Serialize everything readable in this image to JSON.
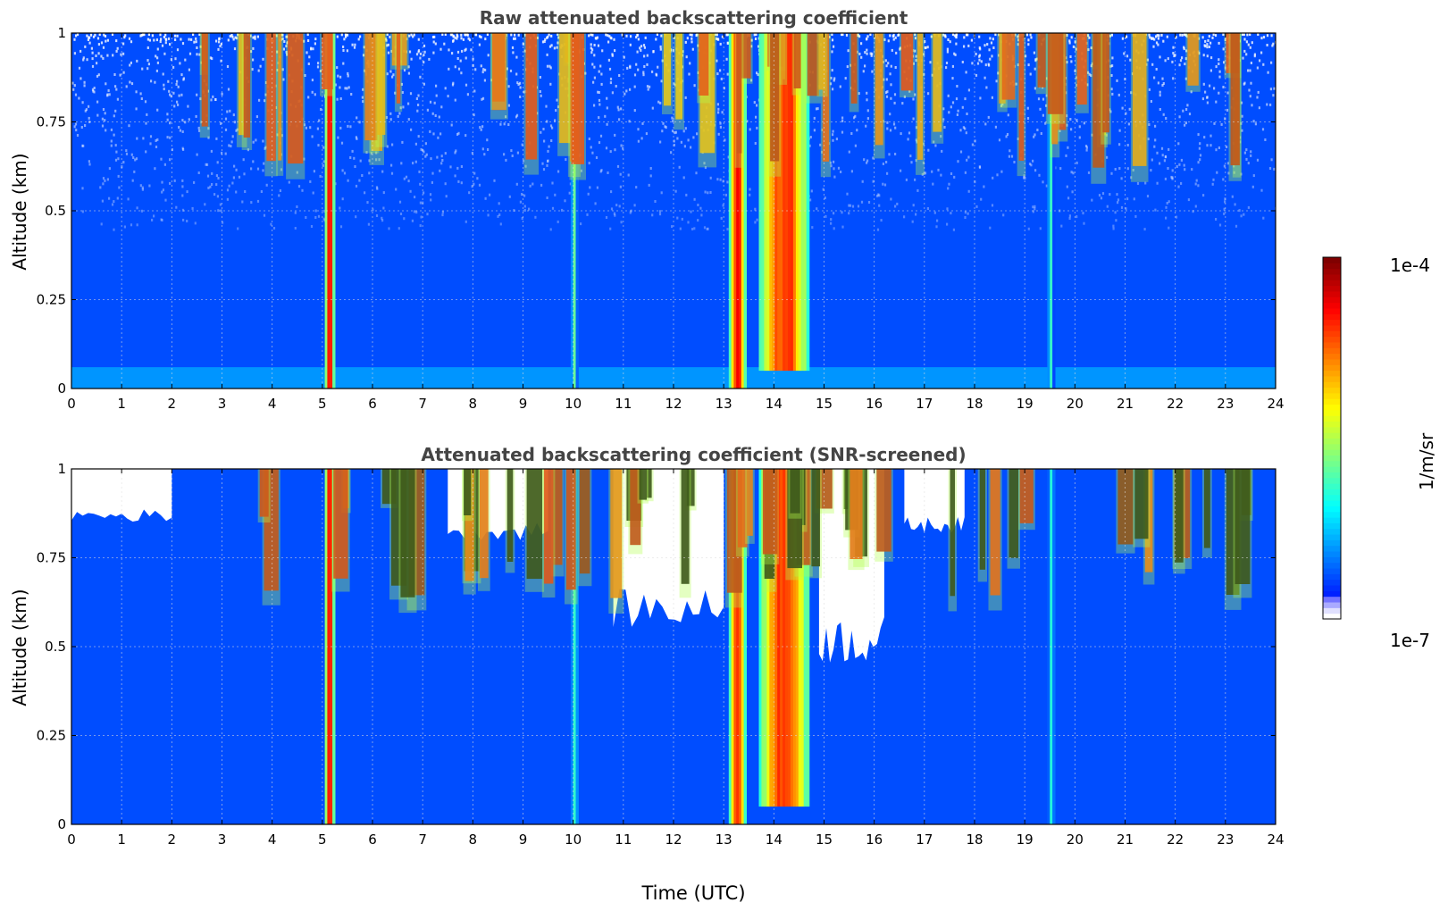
{
  "figure": {
    "colorbar": {
      "max_label": "1e-4",
      "min_label": "1e-7",
      "unit": "1/m/sr",
      "colormap": "jet",
      "scale": "log"
    }
  },
  "chart_data": [
    {
      "type": "heatmap",
      "title": "Raw attenuated backscattering coefficient",
      "xlabel": "",
      "ylabel": "Altitude (km)",
      "xlim": [
        0,
        24
      ],
      "ylim": [
        0,
        1
      ],
      "xticks": [
        "0",
        "1",
        "2",
        "3",
        "4",
        "5",
        "6",
        "7",
        "8",
        "9",
        "10",
        "11",
        "12",
        "13",
        "14",
        "15",
        "16",
        "17",
        "18",
        "19",
        "20",
        "21",
        "22",
        "23",
        "24"
      ],
      "yticks": [
        "0",
        "0.25",
        "0.5",
        "0.75",
        "1"
      ],
      "grid": true,
      "colorbar_range": [
        "1e-7",
        "1e-4"
      ],
      "features": [
        {
          "feature": "background",
          "alt_range": [
            0,
            1
          ],
          "level": 0.2
        },
        {
          "feature": "noisy speckle upper region",
          "time_range": [
            0,
            24
          ],
          "alt_range": [
            0.45,
            1
          ]
        },
        {
          "feature": "surface layer",
          "alt_range": [
            0,
            0.06
          ],
          "level": 0.3
        },
        {
          "feature": "vertical column",
          "time_range": [
            5.05,
            5.25
          ],
          "alt_range": [
            0,
            1
          ],
          "level": 0.92
        },
        {
          "feature": "vertical column",
          "time_range": [
            9.95,
            10.1
          ],
          "alt_range": [
            0,
            1
          ],
          "level": 0.45
        },
        {
          "feature": "vertical column",
          "time_range": [
            13.1,
            13.45
          ],
          "alt_range": [
            0,
            1
          ],
          "level": 0.85
        },
        {
          "feature": "vertical column",
          "time_range": [
            13.7,
            14.7
          ],
          "alt_range": [
            0.05,
            1
          ],
          "level": 0.8
        },
        {
          "feature": "vertical column",
          "time_range": [
            19.45,
            19.6
          ],
          "alt_range": [
            0,
            1
          ],
          "level": 0.42
        },
        {
          "feature": "cloud patches",
          "time_range": [
            2.5,
            23.5
          ],
          "alt_range": [
            0.6,
            1
          ],
          "level": 0.95
        }
      ]
    },
    {
      "type": "heatmap",
      "title": "Attenuated backscattering coefficient (SNR-screened)",
      "xlabel": "Time (UTC)",
      "ylabel": "Altitude (km)",
      "xlim": [
        0,
        24
      ],
      "ylim": [
        0,
        1
      ],
      "xticks": [
        "0",
        "1",
        "2",
        "3",
        "4",
        "5",
        "6",
        "7",
        "8",
        "9",
        "10",
        "11",
        "12",
        "13",
        "14",
        "15",
        "16",
        "17",
        "18",
        "19",
        "20",
        "21",
        "22",
        "23",
        "24"
      ],
      "yticks": [
        "0",
        "0.25",
        "0.5",
        "0.75",
        "1"
      ],
      "grid": true,
      "colorbar_range": [
        "1e-7",
        "1e-4"
      ],
      "features": [
        {
          "feature": "background",
          "alt_range": [
            0,
            1
          ],
          "level": 0.2
        },
        {
          "feature": "screened (no data)",
          "time_range": [
            0,
            2
          ],
          "alt_range": [
            0.85,
            1
          ]
        },
        {
          "feature": "screened (no data)",
          "time_range": [
            7.5,
            9.5
          ],
          "alt_range": [
            0.8,
            1
          ]
        },
        {
          "feature": "screened (no data)",
          "time_range": [
            10.8,
            13.0
          ],
          "alt_range": [
            0.55,
            1
          ]
        },
        {
          "feature": "screened (no data)",
          "time_range": [
            14.9,
            16.2
          ],
          "alt_range": [
            0.45,
            1
          ]
        },
        {
          "feature": "screened (no data)",
          "time_range": [
            16.6,
            17.8
          ],
          "alt_range": [
            0.82,
            1
          ]
        },
        {
          "feature": "vertical column",
          "time_range": [
            5.05,
            5.25
          ],
          "alt_range": [
            0,
            1
          ],
          "level": 0.92
        },
        {
          "feature": "vertical column",
          "time_range": [
            9.95,
            10.1
          ],
          "alt_range": [
            0,
            1
          ],
          "level": 0.45
        },
        {
          "feature": "vertical column",
          "time_range": [
            13.1,
            13.45
          ],
          "alt_range": [
            0,
            1
          ],
          "level": 0.85
        },
        {
          "feature": "vertical column",
          "time_range": [
            13.7,
            14.7
          ],
          "alt_range": [
            0.05,
            1
          ],
          "level": 0.8
        },
        {
          "feature": "vertical column",
          "time_range": [
            19.45,
            19.6
          ],
          "alt_range": [
            0,
            1
          ],
          "level": 0.42
        },
        {
          "feature": "cloud patches (saturated)",
          "time_range": [
            3.5,
            23.5
          ],
          "alt_range": [
            0.6,
            1
          ],
          "level": 1.0
        }
      ]
    }
  ]
}
